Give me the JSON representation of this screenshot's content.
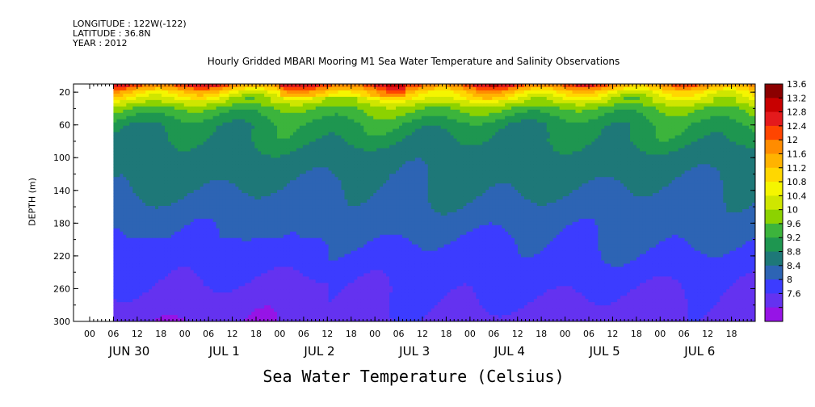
{
  "header": {
    "longitude": "LONGITUDE : 122W(-122)",
    "latitude": "LATITUDE : 36.8N",
    "year": "YEAR : 2012"
  },
  "chart_data": {
    "type": "heatmap",
    "title": "Hourly Gridded MBARI Mooring M1 Sea Water Temperature and Salinity Observations",
    "xlabel": "Sea Water Temperature (Celsius)",
    "ylabel": "DEPTH (m)",
    "y_ticks": [
      20,
      60,
      100,
      140,
      180,
      220,
      260,
      300
    ],
    "ylim": [
      10,
      300
    ],
    "y_inverted": true,
    "x_hour_ticks": [
      "00",
      "06",
      "12",
      "18",
      "00",
      "06",
      "12",
      "18",
      "00",
      "06",
      "12",
      "18",
      "00",
      "06",
      "12",
      "18",
      "00",
      "06",
      "12",
      "18",
      "00",
      "06",
      "12",
      "18",
      "00",
      "06",
      "12",
      "18"
    ],
    "x_day_labels": [
      "JUN 30",
      "JUL 1",
      "JUL 2",
      "JUL 3",
      "JUL 4",
      "JUL 5",
      "JUL 6"
    ],
    "data_start_hour": 6,
    "colorbar": {
      "levels": [
        "13.6",
        "13.2",
        "12.8",
        "12.4",
        "12",
        "11.6",
        "11.2",
        "10.8",
        "10.4",
        "10",
        "9.6",
        "9.2",
        "8.8",
        "8.4",
        "8",
        "7.6"
      ],
      "colors": [
        "#8b0000",
        "#c80000",
        "#e41a1c",
        "#ff4500",
        "#ff8c00",
        "#ffb300",
        "#ffd700",
        "#f5f500",
        "#cfe600",
        "#8cd200",
        "#3cb43c",
        "#1e9650",
        "#1e7878",
        "#2d64b4",
        "#3c3cff",
        "#6432f0",
        "#9614e6"
      ]
    },
    "profile": [
      {
        "depth": 10,
        "temp": 12.6
      },
      {
        "depth": 20,
        "temp": 11.3
      },
      {
        "depth": 40,
        "temp": 10.0
      },
      {
        "depth": 60,
        "temp": 9.4
      },
      {
        "depth": 100,
        "temp": 9.0
      },
      {
        "depth": 140,
        "temp": 8.8
      },
      {
        "depth": 180,
        "temp": 8.55
      },
      {
        "depth": 220,
        "temp": 8.3
      },
      {
        "depth": 260,
        "temp": 8.05
      },
      {
        "depth": 300,
        "temp": 7.85
      }
    ]
  }
}
